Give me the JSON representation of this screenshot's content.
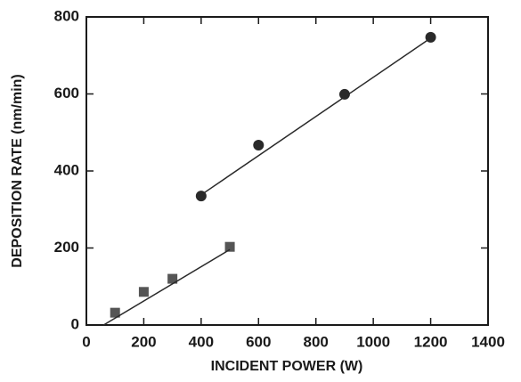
{
  "chart_data": {
    "type": "scatter",
    "x_label": "INCIDENT POWER  (W)",
    "y_label": "DEPOSITION RATE  (nm/min)",
    "xlim": [
      0,
      1400
    ],
    "xticks": [
      0,
      200,
      400,
      600,
      800,
      1000,
      1200,
      1400
    ],
    "ylim": [
      0,
      800
    ],
    "yticks": [
      0,
      200,
      400,
      600,
      800
    ],
    "series": [
      {
        "marker": "circle",
        "color": "#2a2a2a",
        "x": [
          400,
          600,
          900,
          1200
        ],
        "values": [
          335,
          467,
          599,
          747
        ]
      },
      {
        "marker": "square",
        "color": "#555555",
        "x": [
          100,
          200,
          300,
          500
        ],
        "values": [
          32,
          86,
          120,
          203
        ]
      },
      {
        "marker": "line",
        "color": "#2a2a2a",
        "x": [
          400,
          1200
        ],
        "values": [
          338,
          745
        ]
      },
      {
        "marker": "line",
        "color": "#2a2a2a",
        "x": [
          60,
          500
        ],
        "values": [
          0,
          196
        ]
      }
    ]
  }
}
